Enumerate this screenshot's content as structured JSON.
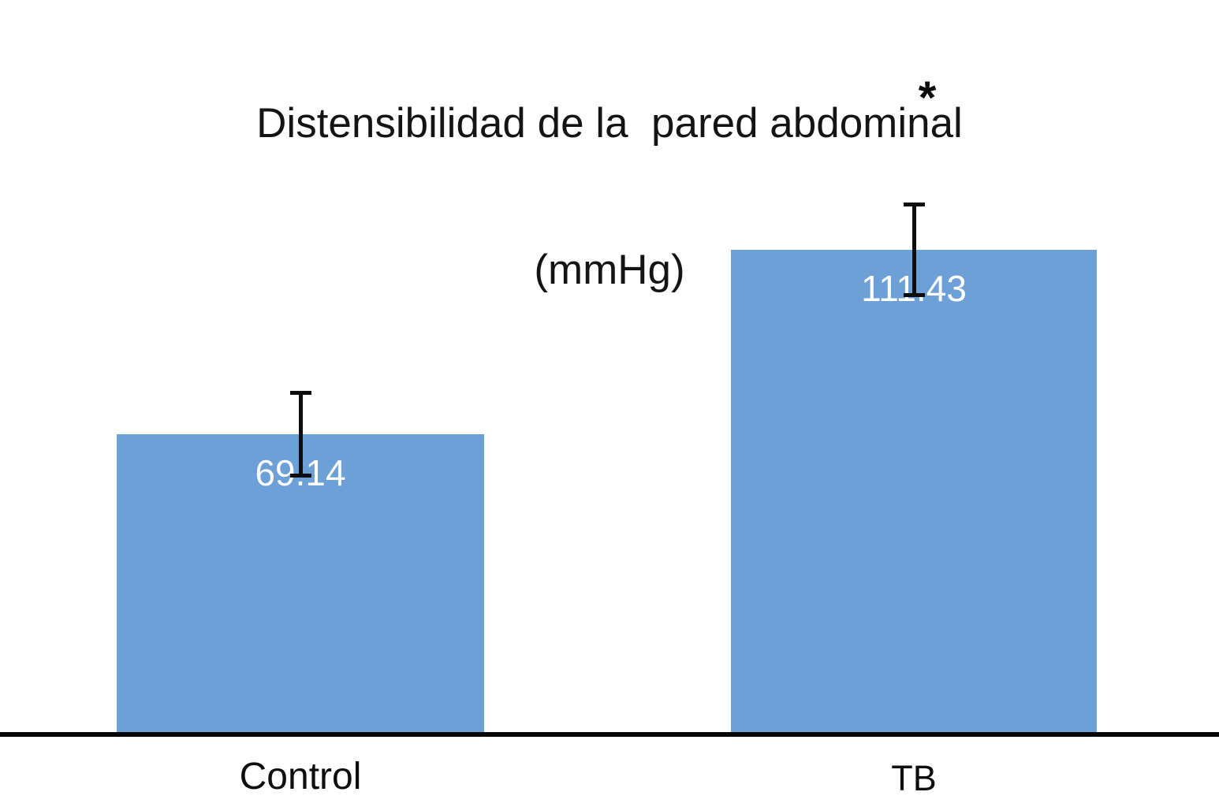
{
  "chart_data": {
    "type": "bar",
    "title": "Distensibilidad de la  pared abdominal (mmHg)",
    "title_lines": [
      "Distensibilidad de la  pared abdominal",
      "(mmHg)"
    ],
    "unit": "mmHg",
    "categories": [
      "Control",
      "TB"
    ],
    "values": [
      69.14,
      111.43
    ],
    "value_labels": [
      "69.14",
      "111.43"
    ],
    "errors": [
      10.0,
      10.8
    ],
    "annotations": [
      {
        "text": "*",
        "above_category": "TB"
      }
    ],
    "bar_color": "#6CA0D6",
    "value_label_color": "#FFFFFF",
    "axis_color": "#060606",
    "error_bar_color": "#0d0d0d",
    "ylim": [
      0,
      170
    ],
    "grid": false,
    "legend": false,
    "xlabel": "",
    "ylabel": ""
  }
}
